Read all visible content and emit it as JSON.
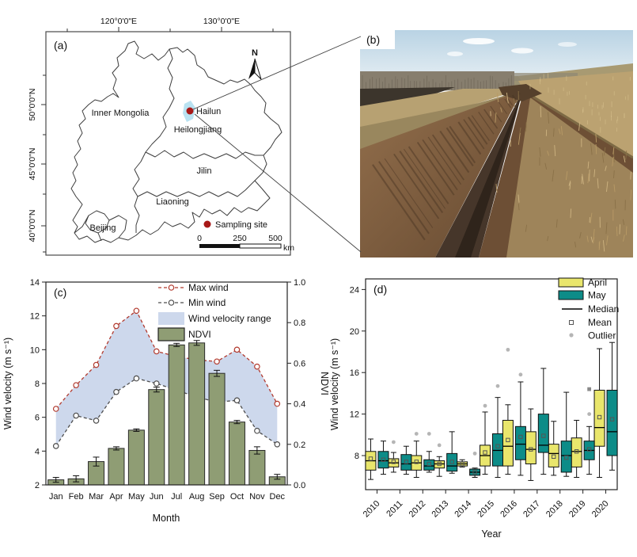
{
  "figure": {
    "background": "#ffffff"
  },
  "panels": {
    "a": {
      "label": "(a)",
      "lon_ticks": [
        "120°0'0\"E",
        "130°0'0\"E"
      ],
      "lat_ticks": [
        "50°0'0\"N",
        "45°0'0\"N",
        "40°0'0\"N"
      ],
      "regions": [
        "Inner Mongolia",
        "Heilongjiang",
        "Jilin",
        "Liaoning",
        "Beijing"
      ],
      "site": {
        "name": "Hailun",
        "marker_color": "#a81817",
        "highlight_color": "#b9e2f1"
      },
      "legend_label": "Sampling site",
      "north_label": "N",
      "scalebar": {
        "labels": [
          "0",
          "250",
          "500"
        ],
        "unit": "km"
      }
    },
    "b": {
      "label": "(b)",
      "subject": "erosion-gully-photo"
    }
  },
  "chart_data": [
    {
      "id": "c",
      "type": "line+bar",
      "panel_label": "(c)",
      "categories": [
        "Jan",
        "Feb",
        "Mar",
        "Apr",
        "May",
        "Jun",
        "Jul",
        "Aug",
        "Sep",
        "Oct",
        "Nov",
        "Dec"
      ],
      "xlabel": "Month",
      "ylabel_left": "Wind velocity (m s⁻¹)",
      "ylabel_right": "NDVI",
      "ylim_left": [
        2,
        14
      ],
      "yticks_left": [
        "2",
        "4",
        "6",
        "8",
        "10",
        "12",
        "14"
      ],
      "ylim_right": [
        0,
        1.0
      ],
      "yticks_right": [
        "0.0",
        "0.2",
        "0.4",
        "0.6",
        "0.8",
        "1.0"
      ],
      "legend_position": "top-center",
      "series": [
        {
          "name": "Max wind",
          "type": "line",
          "axis": "left",
          "color": "#b23a2e",
          "linestyle": "dashed",
          "marker": "open-circle",
          "values": [
            6.5,
            7.9,
            9.1,
            11.4,
            12.3,
            9.9,
            9.6,
            9.4,
            9.3,
            10.0,
            9.0,
            6.8
          ]
        },
        {
          "name": "Min wind",
          "type": "line",
          "axis": "left",
          "color": "#4d4d4d",
          "linestyle": "dashed",
          "marker": "open-circle",
          "values": [
            4.3,
            6.1,
            5.8,
            7.5,
            8.3,
            8.0,
            7.6,
            7.2,
            6.9,
            7.0,
            5.2,
            4.4
          ]
        },
        {
          "name": "Wind velocity range",
          "type": "band",
          "axis": "left",
          "color": "#cdd8ec",
          "between": [
            "Max wind",
            "Min wind"
          ]
        },
        {
          "name": "NDVI",
          "type": "bar",
          "axis": "right",
          "color": "#8f9d74",
          "edge_color": "#2a2a2a",
          "values": [
            0.025,
            0.03,
            0.115,
            0.18,
            0.27,
            0.47,
            0.69,
            0.7,
            0.55,
            0.31,
            0.17,
            0.04
          ],
          "errors": [
            0.012,
            0.015,
            0.022,
            0.008,
            0.006,
            0.012,
            0.008,
            0.012,
            0.015,
            0.008,
            0.018,
            0.012
          ]
        }
      ]
    },
    {
      "id": "d",
      "type": "boxplot",
      "panel_label": "(d)",
      "categories": [
        "2010",
        "2011",
        "2012",
        "2013",
        "2014",
        "2015",
        "2016",
        "2017",
        "2018",
        "2019",
        "2020"
      ],
      "xlabel": "Year",
      "ylabel": "Wind velocity (m s⁻¹)",
      "ylim": [
        4.5,
        25
      ],
      "yticks": [
        "8",
        "12",
        "16",
        "20",
        "24"
      ],
      "legend": [
        "April",
        "May",
        "Median",
        "Mean",
        "Outlier"
      ],
      "marker_colors": {
        "outlier": "#b5b5b5",
        "extreme": "#8a8a8a",
        "median": "#000000",
        "mean_edge": "#555555"
      },
      "groups": [
        {
          "name": "April",
          "color": "#e9e66c",
          "boxes": [
            {
              "low": 5.7,
              "q1": 6.6,
              "median": 7.5,
              "mean": 7.7,
              "q3": 8.4,
              "high": 9.6,
              "outliers": [],
              "extremes": []
            },
            {
              "low": 6.4,
              "q1": 6.9,
              "median": 7.3,
              "mean": 7.4,
              "q3": 7.7,
              "high": 8.3,
              "outliers": [
                9.3
              ],
              "extremes": []
            },
            {
              "low": 5.9,
              "q1": 6.6,
              "median": 7.3,
              "mean": 7.4,
              "q3": 8.0,
              "high": 9.4,
              "outliers": [
                10.1
              ],
              "extremes": []
            },
            {
              "low": 6.0,
              "q1": 6.8,
              "median": 7.2,
              "mean": 7.2,
              "q3": 7.5,
              "high": 7.9,
              "outliers": [
                9.0
              ],
              "extremes": []
            },
            {
              "low": 6.9,
              "q1": 7.0,
              "median": 7.2,
              "mean": 7.2,
              "q3": 7.4,
              "high": 7.6,
              "outliers": [],
              "extremes": []
            },
            {
              "low": 6.2,
              "q1": 7.0,
              "median": 8.0,
              "mean": 8.3,
              "q3": 9.0,
              "high": 12.2,
              "outliers": [
                12.8
              ],
              "extremes": []
            },
            {
              "low": 6.2,
              "q1": 7.0,
              "median": 8.9,
              "mean": 9.5,
              "q3": 11.4,
              "high": 12.9,
              "outliers": [
                18.2
              ],
              "extremes": []
            },
            {
              "low": 5.6,
              "q1": 7.2,
              "median": 8.6,
              "mean": 8.6,
              "q3": 10.3,
              "high": 12.5,
              "outliers": [],
              "extremes": []
            },
            {
              "low": 6.1,
              "q1": 6.9,
              "median": 8.2,
              "mean": 7.9,
              "q3": 9.1,
              "high": 11.3,
              "outliers": [],
              "extremes": []
            },
            {
              "low": 5.9,
              "q1": 6.9,
              "median": 8.4,
              "mean": 8.4,
              "q3": 9.7,
              "high": 11.4,
              "outliers": [],
              "extremes": []
            },
            {
              "low": 5.9,
              "q1": 8.9,
              "median": 10.7,
              "mean": 11.7,
              "q3": 14.3,
              "high": 18.3,
              "outliers": [],
              "extremes": []
            }
          ]
        },
        {
          "name": "May",
          "color": "#0d8c88",
          "boxes": [
            {
              "low": 6.2,
              "q1": 6.8,
              "median": 7.5,
              "mean": 7.6,
              "q3": 8.4,
              "high": 9.4,
              "outliers": [],
              "extremes": []
            },
            {
              "low": 6.2,
              "q1": 6.6,
              "median": 7.2,
              "mean": 7.4,
              "q3": 8.1,
              "high": 8.9,
              "outliers": [],
              "extremes": []
            },
            {
              "low": 6.4,
              "q1": 6.6,
              "median": 7.0,
              "mean": 7.2,
              "q3": 7.6,
              "high": 8.4,
              "outliers": [
                10.1
              ],
              "extremes": []
            },
            {
              "low": 6.3,
              "q1": 6.5,
              "median": 7.0,
              "mean": 7.4,
              "q3": 8.2,
              "high": 10.3,
              "outliers": [],
              "extremes": []
            },
            {
              "low": 5.9,
              "q1": 6.1,
              "median": 6.4,
              "mean": 6.4,
              "q3": 6.7,
              "high": 6.8,
              "outliers": [
                8.2
              ],
              "extremes": []
            },
            {
              "low": 5.9,
              "q1": 7.0,
              "median": 8.5,
              "mean": 8.9,
              "q3": 10.1,
              "high": 13.6,
              "outliers": [
                14.7
              ],
              "extremes": []
            },
            {
              "low": 6.1,
              "q1": 7.6,
              "median": 9.1,
              "mean": 9.8,
              "q3": 10.8,
              "high": 15.1,
              "outliers": [
                15.8
              ],
              "extremes": []
            },
            {
              "low": 6.2,
              "q1": 8.3,
              "median": 9.0,
              "mean": 9.9,
              "q3": 12.0,
              "high": 16.4,
              "outliers": [],
              "extremes": []
            },
            {
              "low": 6.0,
              "q1": 6.4,
              "median": 8.0,
              "mean": 7.8,
              "q3": 9.4,
              "high": 14.1,
              "outliers": [],
              "extremes": []
            },
            {
              "low": 6.2,
              "q1": 7.6,
              "median": 8.5,
              "mean": 8.6,
              "q3": 9.4,
              "high": 10.8,
              "outliers": [
                12.0
              ],
              "extremes": [
                14.4
              ]
            },
            {
              "low": 6.6,
              "q1": 8.0,
              "median": 10.3,
              "mean": 11.5,
              "q3": 14.3,
              "high": 18.9,
              "outliers": [],
              "extremes": []
            }
          ]
        }
      ]
    }
  ]
}
